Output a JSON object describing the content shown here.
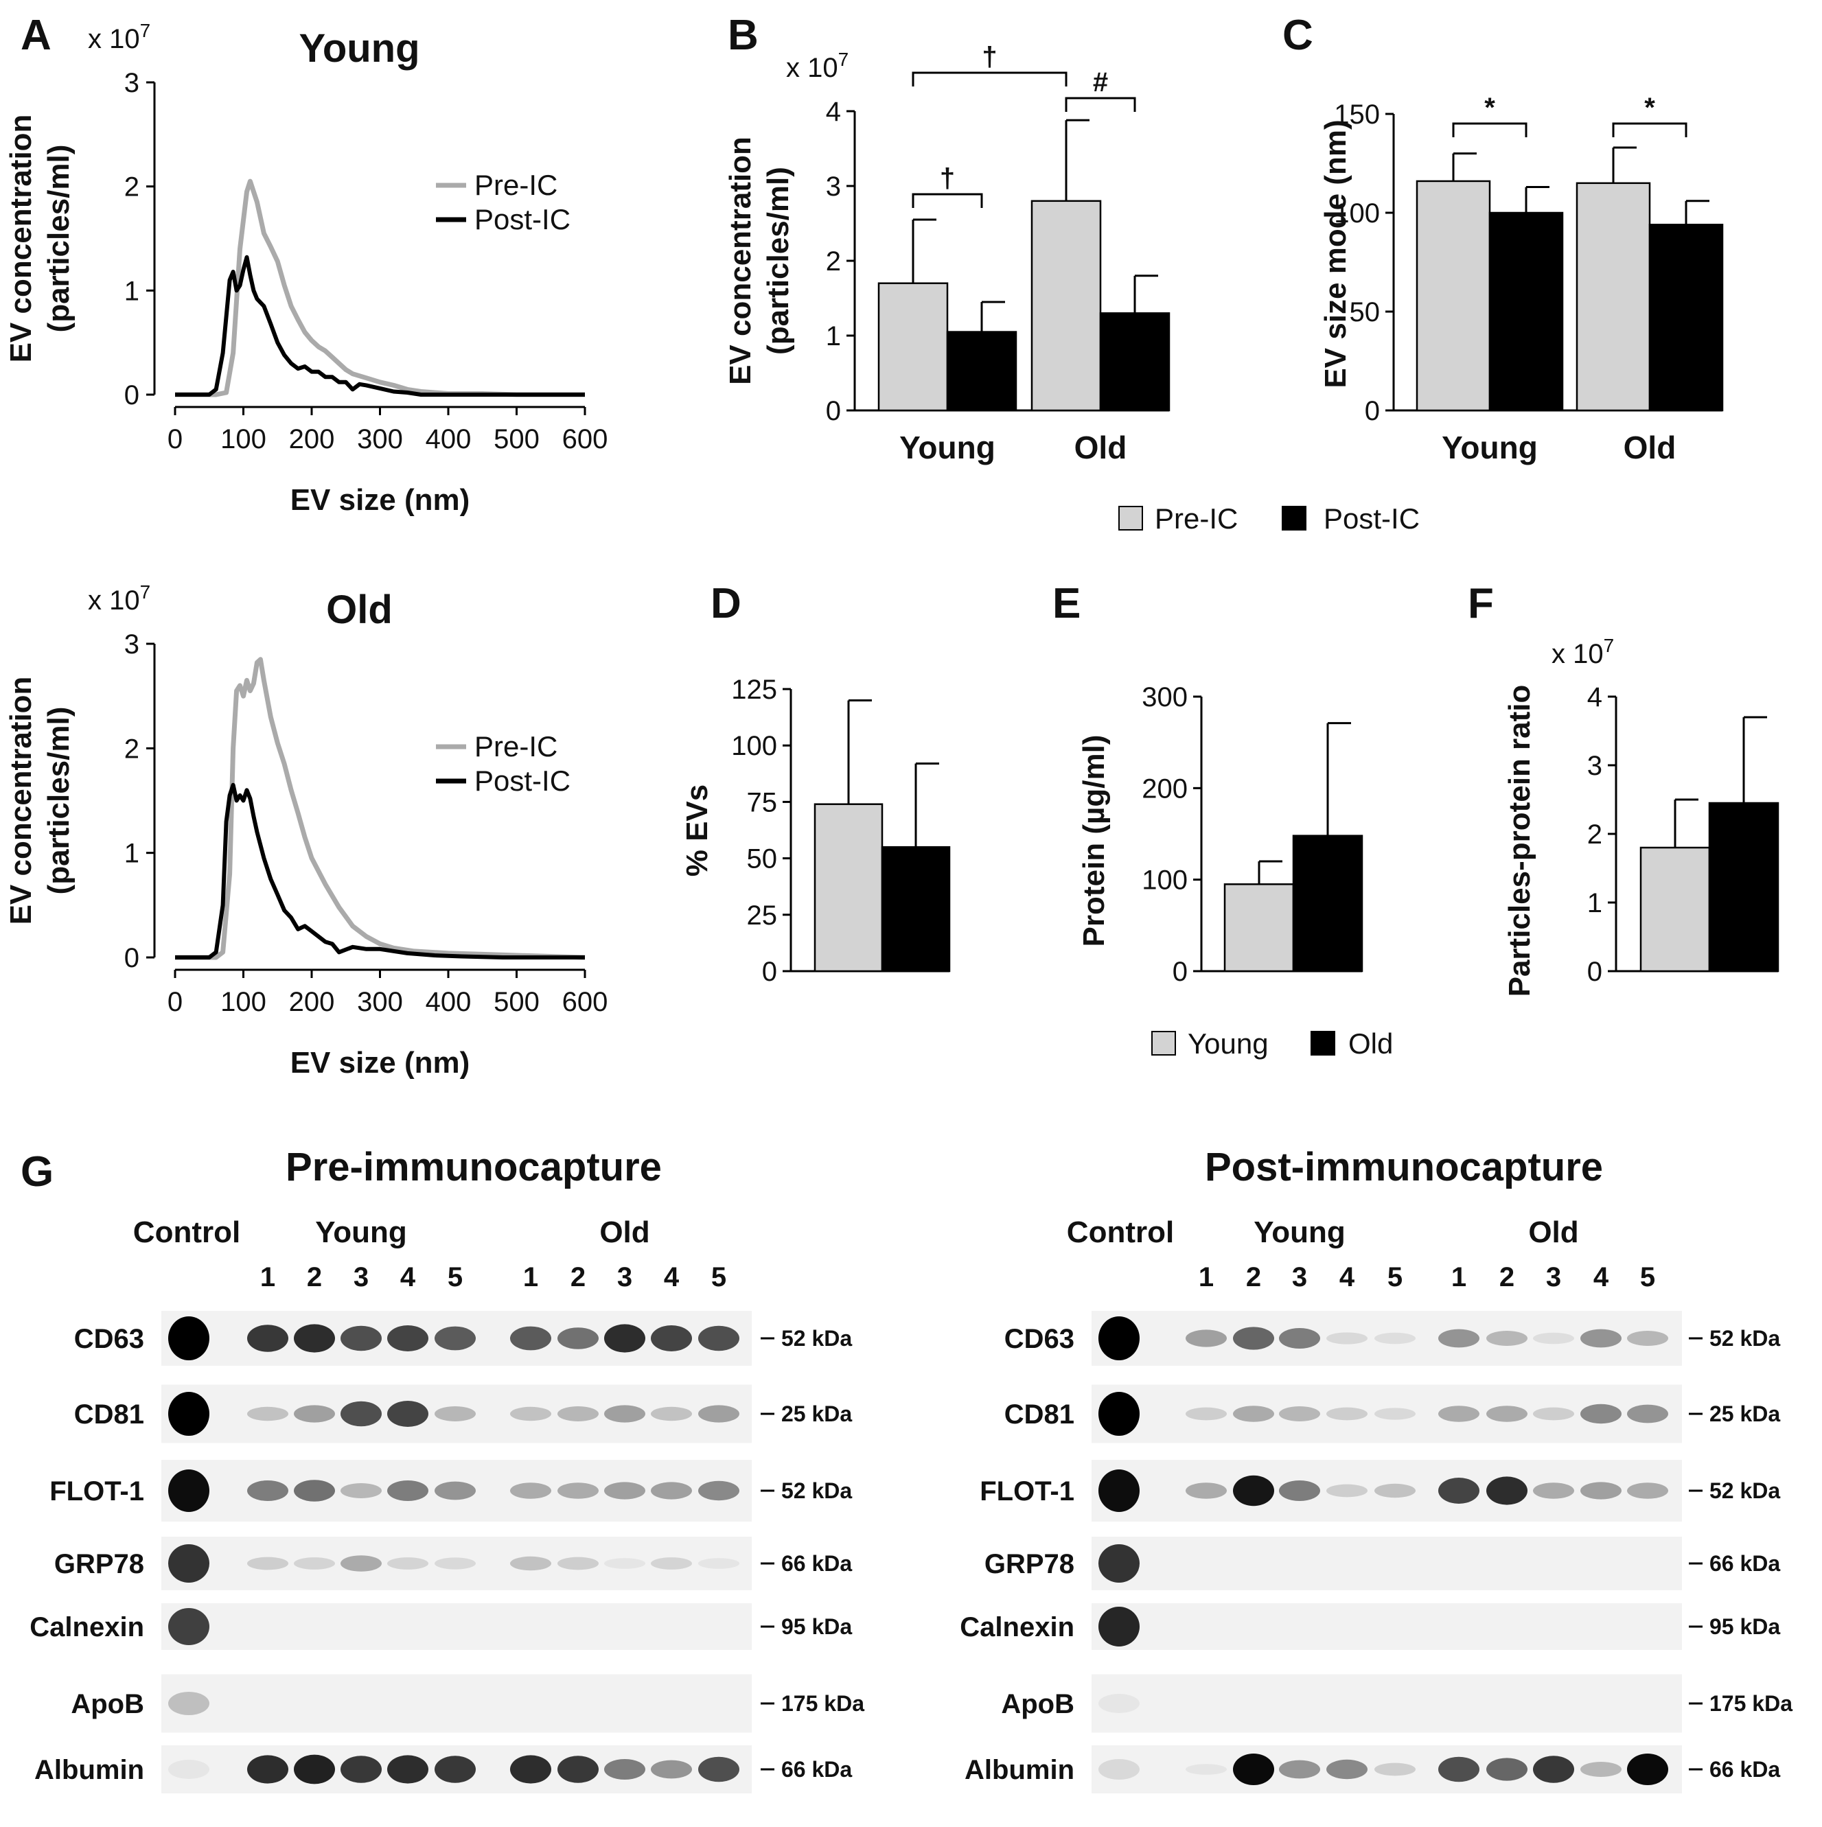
{
  "colors": {
    "pre": "#aaaaaa",
    "post": "#000000",
    "bar_light": "#d3d3d3",
    "bar_dark": "#000000"
  },
  "panels": {
    "A": "A",
    "B": "B",
    "C": "C",
    "D": "D",
    "E": "E",
    "F": "F",
    "G": "G"
  },
  "chart_data": [
    {
      "id": "A_young",
      "type": "line",
      "title": "Young",
      "xlabel": "EV size (nm)",
      "ylabel": [
        "EV concentration",
        "(particles/ml)"
      ],
      "multiplier": "x 10",
      "multiplier_exp": "7",
      "xlim": [
        0,
        600
      ],
      "ylim": [
        0,
        3
      ],
      "xticks": [
        0,
        100,
        200,
        300,
        400,
        500,
        600
      ],
      "yticks": [
        0,
        1,
        2,
        3
      ],
      "series": [
        {
          "name": "Pre-IC",
          "color": "#aaaaaa",
          "x": [
            0,
            60,
            75,
            85,
            95,
            105,
            110,
            120,
            130,
            140,
            150,
            160,
            170,
            180,
            190,
            200,
            210,
            220,
            230,
            240,
            250,
            260,
            280,
            300,
            320,
            340,
            360,
            380,
            400,
            450,
            500,
            600
          ],
          "y": [
            0,
            0,
            0.02,
            0.4,
            1.4,
            1.95,
            2.05,
            1.85,
            1.55,
            1.42,
            1.28,
            1.05,
            0.85,
            0.72,
            0.6,
            0.52,
            0.46,
            0.42,
            0.36,
            0.3,
            0.24,
            0.2,
            0.16,
            0.12,
            0.09,
            0.05,
            0.03,
            0.02,
            0.01,
            0.01,
            0,
            0
          ]
        },
        {
          "name": "Post-IC",
          "color": "#000000",
          "x": [
            0,
            50,
            60,
            70,
            80,
            85,
            90,
            95,
            100,
            105,
            110,
            115,
            120,
            130,
            140,
            150,
            160,
            170,
            180,
            190,
            200,
            210,
            220,
            230,
            240,
            250,
            260,
            270,
            280,
            300,
            320,
            340,
            360,
            400,
            600
          ],
          "y": [
            0,
            0,
            0.05,
            0.4,
            1.1,
            1.18,
            1.0,
            1.05,
            1.2,
            1.32,
            1.15,
            1.0,
            0.92,
            0.85,
            0.68,
            0.5,
            0.38,
            0.3,
            0.25,
            0.27,
            0.22,
            0.22,
            0.17,
            0.17,
            0.12,
            0.12,
            0.05,
            0.1,
            0.09,
            0.06,
            0.03,
            0.02,
            0.0,
            0,
            0
          ]
        }
      ]
    },
    {
      "id": "A_old",
      "type": "line",
      "title": "Old",
      "xlabel": "EV size (nm)",
      "ylabel": [
        "EV concentration",
        "(particles/ml)"
      ],
      "multiplier": "x 10",
      "multiplier_exp": "7",
      "xlim": [
        0,
        600
      ],
      "ylim": [
        0,
        3
      ],
      "xticks": [
        0,
        100,
        200,
        300,
        400,
        500,
        600
      ],
      "yticks": [
        0,
        1,
        2,
        3
      ],
      "series": [
        {
          "name": "Pre-IC",
          "color": "#aaaaaa",
          "x": [
            0,
            60,
            70,
            80,
            85,
            90,
            95,
            100,
            105,
            110,
            115,
            120,
            125,
            130,
            140,
            150,
            160,
            170,
            180,
            190,
            200,
            220,
            240,
            260,
            280,
            300,
            320,
            350,
            400,
            450,
            500,
            550,
            600
          ],
          "y": [
            0,
            0,
            0.05,
            0.8,
            2.0,
            2.55,
            2.6,
            2.5,
            2.65,
            2.55,
            2.62,
            2.82,
            2.85,
            2.65,
            2.3,
            2.05,
            1.85,
            1.6,
            1.38,
            1.15,
            0.95,
            0.7,
            0.48,
            0.3,
            0.2,
            0.13,
            0.09,
            0.06,
            0.04,
            0.03,
            0.02,
            0.01,
            0
          ]
        },
        {
          "name": "Post-IC",
          "color": "#000000",
          "x": [
            0,
            50,
            60,
            70,
            75,
            80,
            85,
            90,
            95,
            100,
            105,
            110,
            115,
            120,
            130,
            140,
            150,
            160,
            170,
            180,
            190,
            200,
            210,
            220,
            230,
            240,
            260,
            280,
            300,
            340,
            380,
            420,
            480,
            600
          ],
          "y": [
            0,
            0,
            0.05,
            0.5,
            1.3,
            1.55,
            1.65,
            1.5,
            1.55,
            1.5,
            1.6,
            1.52,
            1.35,
            1.2,
            0.95,
            0.75,
            0.6,
            0.45,
            0.38,
            0.27,
            0.3,
            0.25,
            0.2,
            0.15,
            0.13,
            0.05,
            0.1,
            0.08,
            0.08,
            0.04,
            0.02,
            0.01,
            0,
            0
          ]
        }
      ]
    },
    {
      "id": "B",
      "type": "bar",
      "ylabel": [
        "EV concentration",
        "(particles/ml)"
      ],
      "multiplier": "x 10",
      "multiplier_exp": "7",
      "categories": [
        "Young",
        "Old"
      ],
      "ylim": [
        0,
        4
      ],
      "yticks": [
        0,
        1,
        2,
        3,
        4
      ],
      "series": [
        {
          "name": "Pre-IC",
          "values": [
            1.7,
            2.8
          ],
          "errors": [
            0.85,
            1.08
          ]
        },
        {
          "name": "Post-IC",
          "values": [
            1.05,
            1.3
          ],
          "errors": [
            0.4,
            0.5
          ]
        }
      ],
      "annotations": [
        {
          "text": "†",
          "between": "Young Pre-IC vs Young Post-IC"
        },
        {
          "text": "#",
          "between": "Old Pre-IC vs Old Post-IC"
        },
        {
          "text": "†",
          "between": "Young Pre-IC vs Old Pre-IC"
        }
      ]
    },
    {
      "id": "C",
      "type": "bar",
      "ylabel": [
        "EV size mode (nm)"
      ],
      "categories": [
        "Young",
        "Old"
      ],
      "ylim": [
        0,
        150
      ],
      "yticks": [
        0,
        50,
        100,
        150
      ],
      "series": [
        {
          "name": "Pre-IC",
          "values": [
            116,
            115
          ],
          "errors": [
            14,
            18
          ]
        },
        {
          "name": "Post-IC",
          "values": [
            100,
            94
          ],
          "errors": [
            13,
            12
          ]
        }
      ],
      "annotations": [
        {
          "text": "*",
          "between": "Young Pre-IC vs Post-IC"
        },
        {
          "text": "*",
          "between": "Old Pre-IC vs Post-IC"
        }
      ]
    },
    {
      "id": "D",
      "type": "bar",
      "ylabel": [
        "% EVs"
      ],
      "categories": [
        "Young",
        "Old"
      ],
      "ylim": [
        0,
        125
      ],
      "yticks": [
        0,
        25,
        50,
        75,
        100,
        125
      ],
      "values": [
        74,
        55
      ],
      "errors": [
        46,
        37
      ]
    },
    {
      "id": "E",
      "type": "bar",
      "ylabel": [
        "Protein (µg/ml)"
      ],
      "categories": [
        "Young",
        "Old"
      ],
      "ylim": [
        0,
        300
      ],
      "yticks": [
        0,
        100,
        200,
        300
      ],
      "values": [
        95,
        148
      ],
      "errors": [
        25,
        123
      ]
    },
    {
      "id": "F",
      "type": "bar",
      "ylabel": [
        "Particles-protein ratio"
      ],
      "multiplier": "x 10",
      "multiplier_exp": "7",
      "categories": [
        "Young",
        "Old"
      ],
      "ylim": [
        0,
        4
      ],
      "yticks": [
        0,
        1,
        2,
        3,
        4
      ],
      "values": [
        1.8,
        2.45
      ],
      "errors": [
        0.7,
        1.25
      ]
    }
  ],
  "legends": {
    "bc": [
      {
        "label": "Pre-IC",
        "color": "#d3d3d3"
      },
      {
        "label": "Post-IC",
        "color": "#000000"
      }
    ],
    "def": [
      {
        "label": "Young",
        "color": "#d3d3d3"
      },
      {
        "label": "Old",
        "color": "#000000"
      }
    ]
  },
  "western_blot": {
    "panels": [
      {
        "id": "pre",
        "title": "Pre-immunocapture",
        "control_label": "Control",
        "group_labels": [
          "Young",
          "Old"
        ],
        "lane_numbers": [
          "1",
          "2",
          "3",
          "4",
          "5",
          "1",
          "2",
          "3",
          "4",
          "5"
        ],
        "rows": [
          {
            "protein": "CD63",
            "kda": "52 kDa",
            "control": 1.0,
            "lanes": [
              0.8,
              0.85,
              0.7,
              0.75,
              0.65,
              0.65,
              0.55,
              0.85,
              0.75,
              0.7
            ]
          },
          {
            "protein": "CD81",
            "kda": "25 kDa",
            "control": 1.0,
            "lanes": [
              0.2,
              0.35,
              0.7,
              0.75,
              0.25,
              0.2,
              0.25,
              0.35,
              0.2,
              0.35
            ]
          },
          {
            "protein": "FLOT-1",
            "kda": "52 kDa",
            "control": 0.95,
            "lanes": [
              0.5,
              0.55,
              0.25,
              0.5,
              0.4,
              0.3,
              0.3,
              0.35,
              0.35,
              0.45
            ]
          },
          {
            "protein": "GRP78",
            "kda": "66 kDa",
            "control": 0.8,
            "lanes": [
              0.15,
              0.12,
              0.3,
              0.12,
              0.1,
              0.2,
              0.15,
              0.05,
              0.12,
              0.05
            ]
          },
          {
            "protein": "Calnexin",
            "kda": "95 kDa",
            "control": 0.75,
            "lanes": [
              0,
              0,
              0,
              0,
              0,
              0,
              0,
              0,
              0,
              0
            ]
          },
          {
            "protein": "ApoB",
            "kda": "175 kDa",
            "control": 0.25,
            "lanes": [
              0,
              0,
              0,
              0,
              0,
              0,
              0,
              0,
              0,
              0
            ]
          },
          {
            "protein": "Albumin",
            "kda": "66 kDa",
            "control": 0.1,
            "lanes": [
              0.85,
              0.9,
              0.8,
              0.85,
              0.8,
              0.85,
              0.8,
              0.5,
              0.4,
              0.7
            ]
          }
        ]
      },
      {
        "id": "post",
        "title": "Post-immunocapture",
        "control_label": "Control",
        "group_labels": [
          "Young",
          "Old"
        ],
        "lane_numbers": [
          "1",
          "2",
          "3",
          "4",
          "5",
          "1",
          "2",
          "3",
          "4",
          "5"
        ],
        "rows": [
          {
            "protein": "CD63",
            "kda": "52 kDa",
            "control": 1.0,
            "lanes": [
              0.35,
              0.6,
              0.5,
              0.1,
              0.08,
              0.4,
              0.25,
              0.08,
              0.4,
              0.25
            ]
          },
          {
            "protein": "CD81",
            "kda": "25 kDa",
            "control": 1.0,
            "lanes": [
              0.15,
              0.3,
              0.25,
              0.15,
              0.1,
              0.3,
              0.3,
              0.15,
              0.45,
              0.4
            ]
          },
          {
            "protein": "FLOT-1",
            "kda": "52 kDa",
            "control": 0.95,
            "lanes": [
              0.3,
              0.95,
              0.5,
              0.15,
              0.2,
              0.75,
              0.85,
              0.3,
              0.35,
              0.3
            ]
          },
          {
            "protein": "GRP78",
            "kda": "66 kDa",
            "control": 0.8,
            "lanes": [
              0,
              0,
              0,
              0,
              0,
              0,
              0,
              0,
              0,
              0
            ]
          },
          {
            "protein": "Calnexin",
            "kda": "95 kDa",
            "control": 0.85,
            "lanes": [
              0,
              0,
              0,
              0,
              0,
              0,
              0,
              0,
              0,
              0
            ]
          },
          {
            "protein": "ApoB",
            "kda": "175 kDa",
            "control": 0.1,
            "lanes": [
              0,
              0,
              0,
              0,
              0,
              0,
              0,
              0,
              0,
              0
            ]
          },
          {
            "protein": "Albumin",
            "kda": "66 kDa",
            "control": 0.15,
            "lanes": [
              0.05,
              1.0,
              0.4,
              0.45,
              0.15,
              0.7,
              0.6,
              0.8,
              0.25,
              1.0
            ]
          }
        ]
      }
    ]
  }
}
